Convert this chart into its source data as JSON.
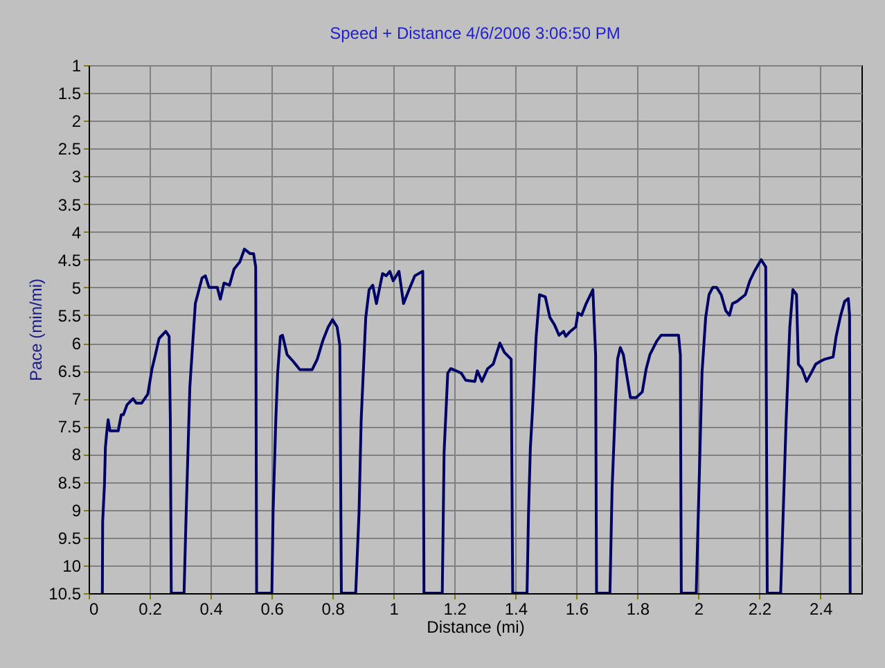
{
  "chart_data": {
    "type": "line",
    "title": "Speed + Distance 4/6/2006 3:06:50 PM",
    "xlabel": "Distance (mi)",
    "ylabel": "Pace (min/mi)",
    "xlim": [
      0,
      2.535
    ],
    "ylim": [
      10.5,
      1
    ],
    "xticks": [
      0,
      0.2,
      0.4,
      0.6,
      0.8,
      1,
      1.2,
      1.4,
      1.6,
      1.8,
      2,
      2.2,
      2.4
    ],
    "yticks": [
      1,
      1.5,
      2,
      2.5,
      3,
      3.5,
      4,
      4.5,
      5,
      5.5,
      6,
      6.5,
      7,
      7.5,
      8,
      8.5,
      9,
      9.5,
      10,
      10.5
    ],
    "grid": true,
    "marker": "none",
    "line_style": "solid",
    "series": [
      {
        "color": "#000066",
        "x": [
          0.045,
          0.046,
          0.052,
          0.055,
          0.059,
          0.064,
          0.07,
          0.097,
          0.107,
          0.114,
          0.126,
          0.146,
          0.156,
          0.174,
          0.194,
          0.208,
          0.219,
          0.231,
          0.246,
          0.253,
          0.264,
          0.268,
          0.271,
          0.313,
          0.32,
          0.332,
          0.35,
          0.372,
          0.383,
          0.395,
          0.422,
          0.432,
          0.444,
          0.462,
          0.477,
          0.496,
          0.511,
          0.529,
          0.541,
          0.548,
          0.551,
          0.601,
          0.605,
          0.614,
          0.62,
          0.629,
          0.636,
          0.651,
          0.671,
          0.693,
          0.733,
          0.75,
          0.768,
          0.786,
          0.8,
          0.815,
          0.824,
          0.829,
          0.876,
          0.887,
          0.894,
          0.909,
          0.92,
          0.932,
          0.944,
          0.964,
          0.976,
          0.988,
          0.999,
          1.018,
          1.033,
          1.051,
          1.07,
          1.096,
          1.1,
          1.16,
          1.166,
          1.178,
          1.188,
          1.222,
          1.237,
          1.267,
          1.275,
          1.29,
          1.309,
          1.327,
          1.349,
          1.364,
          1.386,
          1.391,
          1.438,
          1.443,
          1.449,
          1.456,
          1.468,
          1.479,
          1.498,
          1.513,
          1.528,
          1.543,
          1.558,
          1.565,
          1.58,
          1.598,
          1.605,
          1.617,
          1.632,
          1.654,
          1.663,
          1.666,
          1.71,
          1.717,
          1.729,
          1.735,
          1.744,
          1.754,
          1.769,
          1.777,
          1.796,
          1.816,
          1.829,
          1.841,
          1.864,
          1.878,
          1.935,
          1.941,
          1.944,
          1.993,
          2.0,
          2.012,
          2.024,
          2.035,
          2.047,
          2.06,
          2.075,
          2.09,
          2.102,
          2.112,
          2.127,
          2.154,
          2.169,
          2.184,
          2.206,
          2.221,
          2.226,
          2.27,
          2.288,
          2.3,
          2.31,
          2.322,
          2.328,
          2.34,
          2.355,
          2.37,
          2.385,
          2.4,
          2.415,
          2.442,
          2.452,
          2.467,
          2.48,
          2.492,
          2.496,
          2.498
        ],
        "values": [
          10.5,
          9.21,
          8.54,
          7.88,
          7.63,
          7.38,
          7.58,
          7.58,
          7.29,
          7.29,
          7.11,
          7.0,
          7.08,
          7.08,
          6.92,
          6.46,
          6.21,
          5.92,
          5.83,
          5.79,
          5.88,
          7.38,
          10.5,
          10.5,
          9.04,
          6.79,
          5.29,
          4.83,
          4.79,
          5.0,
          5.0,
          5.21,
          4.92,
          4.96,
          4.67,
          4.54,
          4.31,
          4.39,
          4.39,
          4.63,
          10.5,
          10.5,
          9.04,
          7.38,
          6.54,
          5.88,
          5.86,
          6.21,
          6.33,
          6.48,
          6.48,
          6.29,
          5.96,
          5.71,
          5.58,
          5.71,
          6.04,
          10.5,
          10.5,
          9.04,
          7.38,
          5.54,
          5.04,
          4.96,
          5.29,
          4.75,
          4.79,
          4.71,
          4.88,
          4.71,
          5.29,
          5.04,
          4.79,
          4.71,
          10.5,
          10.5,
          7.96,
          6.54,
          6.46,
          6.54,
          6.67,
          6.69,
          6.5,
          6.69,
          6.46,
          6.38,
          6.0,
          6.17,
          6.29,
          10.5,
          10.5,
          9.04,
          7.88,
          7.21,
          5.88,
          5.13,
          5.17,
          5.54,
          5.67,
          5.86,
          5.79,
          5.88,
          5.79,
          5.71,
          5.46,
          5.5,
          5.29,
          5.04,
          6.21,
          10.5,
          10.5,
          8.63,
          6.96,
          6.29,
          6.08,
          6.21,
          6.71,
          6.98,
          6.98,
          6.88,
          6.46,
          6.21,
          5.96,
          5.86,
          5.86,
          6.21,
          10.5,
          10.5,
          9.04,
          6.54,
          5.54,
          5.13,
          5.0,
          5.0,
          5.13,
          5.42,
          5.5,
          5.29,
          5.25,
          5.13,
          4.88,
          4.71,
          4.5,
          4.63,
          10.5,
          10.5,
          7.38,
          5.71,
          5.04,
          5.13,
          6.38,
          6.46,
          6.69,
          6.54,
          6.38,
          6.33,
          6.29,
          6.25,
          5.88,
          5.5,
          5.25,
          5.2,
          5.5,
          10.5
        ]
      }
    ]
  }
}
